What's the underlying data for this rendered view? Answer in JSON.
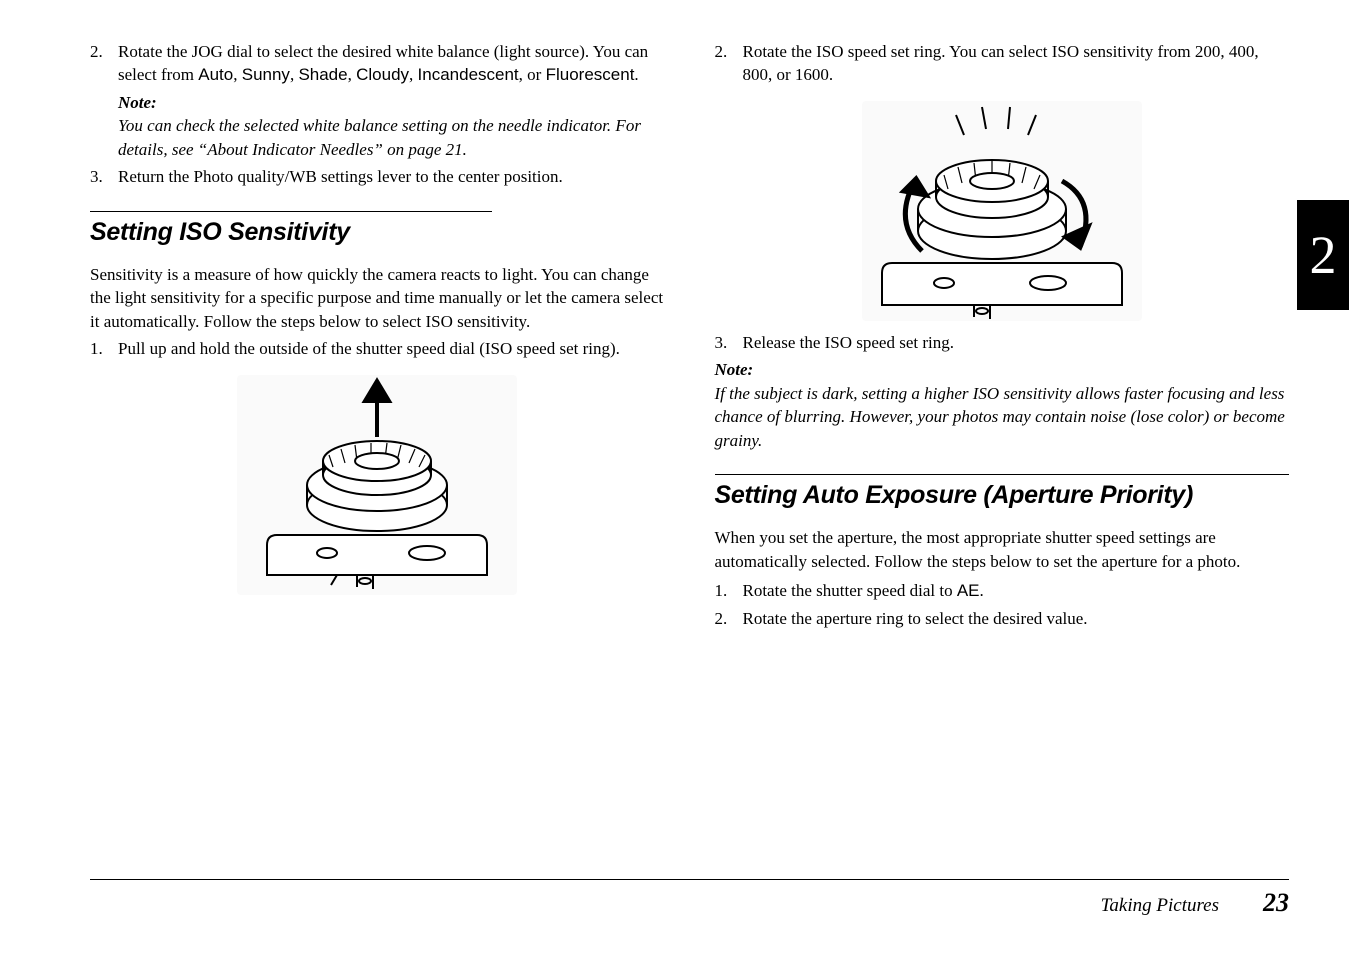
{
  "left": {
    "pre_steps": [
      {
        "num": "2.",
        "html": "Rotate the JOG dial to select the desired white balance (light source). You can select from <span class='sans'>Auto</span>, <span class='sans'>Sunny</span>, <span class='sans'>Shade</span>, <span class='sans'>Cloudy</span>, <span class='sans'>Incandescent</span>, or <span class='sans'>Fluorescent</span>."
      }
    ],
    "pre_note_label": "Note:",
    "pre_note_body": "You can check the selected white balance setting on the needle indicator. For details, see “About Indicator Needles” on page 21.",
    "pre_steps_after": [
      {
        "num": "3.",
        "text": "Return the Photo quality/WB settings lever to the center position."
      }
    ],
    "heading": "Setting ISO Sensitivity",
    "intro": "Sensitivity is a measure of how quickly the camera reacts to light. You can change the light sensitivity for a specific purpose and time manually or let the camera select it automatically. Follow the steps below to select ISO sensitivity.",
    "steps": [
      {
        "num": "1.",
        "text": "Pull up and hold the outside of the shutter speed dial (ISO speed set ring)."
      }
    ]
  },
  "right": {
    "pre_steps": [
      {
        "num": "2.",
        "text": "Rotate the ISO speed set ring. You can select ISO sensitivity from 200, 400, 800, or 1600."
      }
    ],
    "post_steps": [
      {
        "num": "3.",
        "text": "Release the ISO speed set ring."
      }
    ],
    "note_label": "Note:",
    "note_body": "If the subject is dark, setting a higher ISO sensitivity allows faster focusing and less chance of blurring. However, your photos may contain noise (lose color) or become grainy.",
    "heading": "Setting Auto Exposure (Aperture Priority)",
    "intro": "When you set the aperture, the most appropriate shutter speed settings are automatically selected. Follow the steps below to set the aperture for a photo.",
    "steps": [
      {
        "num": "1.",
        "html": "Rotate the shutter speed dial to <span class='sans'>AE</span>."
      },
      {
        "num": "2.",
        "text": "Rotate the aperture ring to select the desired value."
      }
    ]
  },
  "side_tab": "2",
  "footer": {
    "chapter": "Taking Pictures",
    "page": "23"
  },
  "colors": {
    "text": "#000000",
    "background": "#ffffff",
    "illus_bg": "#fafafa"
  },
  "fonts": {
    "body_family": "Palatino",
    "heading_family": "Arial Black Italic",
    "ui_family": "Arial",
    "body_size_pt": 12,
    "heading_size_pt": 18
  }
}
